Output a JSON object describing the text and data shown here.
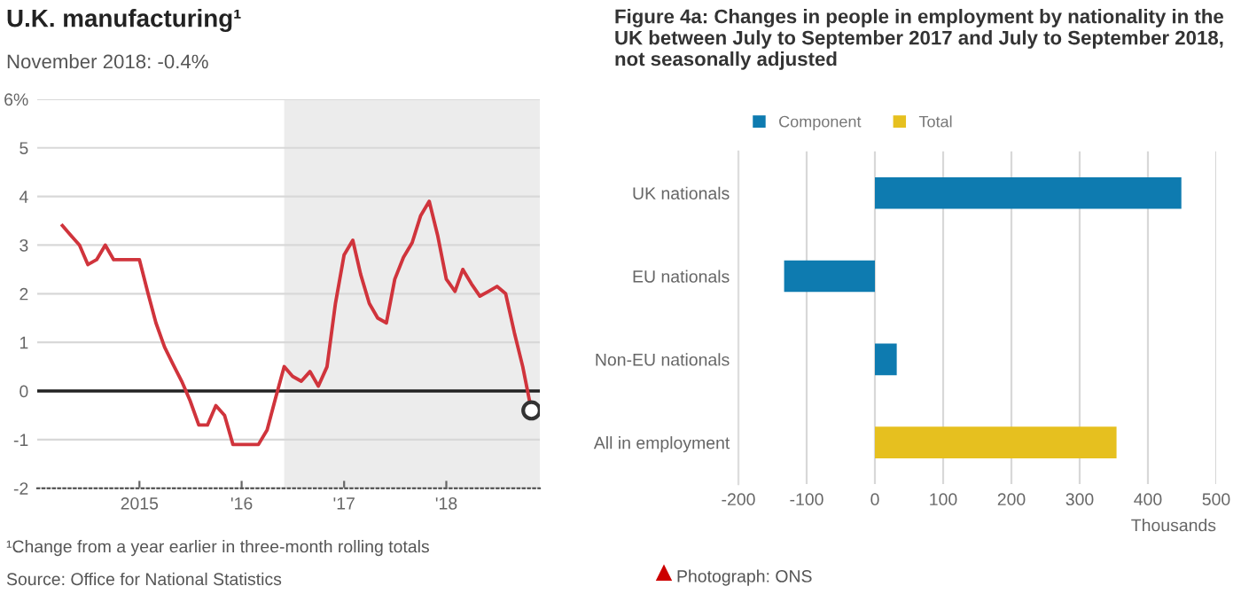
{
  "chart_data": [
    {
      "type": "line",
      "title": "U.K. manufacturing¹",
      "subtitle": "November 2018: -0.4%",
      "x": [
        "2014-04",
        "2014-05",
        "2014-06",
        "2014-07",
        "2014-08",
        "2014-09",
        "2014-10",
        "2014-11",
        "2014-12",
        "2015-01",
        "2015-02",
        "2015-03",
        "2015-04",
        "2015-05",
        "2015-06",
        "2015-07",
        "2015-08",
        "2015-09",
        "2015-10",
        "2015-11",
        "2015-12",
        "2016-01",
        "2016-02",
        "2016-03",
        "2016-04",
        "2016-05",
        "2016-06",
        "2016-07",
        "2016-08",
        "2016-09",
        "2016-10",
        "2016-11",
        "2016-12",
        "2017-01",
        "2017-02",
        "2017-03",
        "2017-04",
        "2017-05",
        "2017-06",
        "2017-07",
        "2017-08",
        "2017-09",
        "2017-10",
        "2017-11",
        "2017-12",
        "2018-01",
        "2018-02",
        "2018-03",
        "2018-04",
        "2018-05",
        "2018-06",
        "2018-07",
        "2018-08",
        "2018-09",
        "2018-10",
        "2018-11"
      ],
      "series": [
        {
          "color": "#d0343c",
          "values": [
            3.4,
            3.2,
            3.0,
            2.6,
            2.7,
            3.0,
            2.7,
            2.7,
            2.7,
            2.7,
            2.0,
            1.4,
            0.9,
            0.55,
            0.2,
            -0.2,
            -0.7,
            -0.7,
            -0.3,
            -0.5,
            -1.1,
            -1.1,
            -1.1,
            -1.1,
            -0.8,
            -0.15,
            0.5,
            0.3,
            0.2,
            0.4,
            0.1,
            0.5,
            1.8,
            2.8,
            3.1,
            2.4,
            1.8,
            1.5,
            1.4,
            2.3,
            2.75,
            3.05,
            3.6,
            3.9,
            3.2,
            2.3,
            2.05,
            2.5,
            2.2,
            1.95,
            2.05,
            2.15,
            2.0,
            1.2,
            0.5,
            -0.4
          ]
        },
        {
          "type": "scatter",
          "marker": "circle",
          "color": "#333333",
          "x": [
            "2018-11"
          ],
          "values": [
            -0.4
          ]
        }
      ],
      "xlim": [
        "2014-01",
        "2018-12"
      ],
      "xticks": [
        {
          "value": "2015-01",
          "label": "2015"
        },
        {
          "value": "2016-01",
          "label": "'16"
        },
        {
          "value": "2017-01",
          "label": "'17"
        },
        {
          "value": "2018-01",
          "label": "'18"
        }
      ],
      "ylim": [
        -2,
        6
      ],
      "yticks": [
        -2,
        -1,
        0,
        1,
        2,
        3,
        4,
        5,
        {
          "value": 6,
          "label": "6%"
        }
      ],
      "grid": "y",
      "ref_lines": [
        {
          "axis": "y",
          "value": 0,
          "color": "#222222"
        }
      ],
      "bands": [
        {
          "axis": "x",
          "from": "2016-06",
          "to": "2018-12",
          "color": "#ececec"
        }
      ],
      "annotations": [
        "¹Change from a year earlier in three-month rolling totals",
        "Source: Office for National Statistics"
      ]
    },
    {
      "type": "bar",
      "orientation": "horizontal",
      "title": "Figure 4a: Changes in people in employment by nationality in the UK between July to September 2017 and July to September 2018, not seasonally adjusted",
      "categories": [
        "UK nationals",
        "EU nationals",
        "Non-EU nationals",
        "All in employment"
      ],
      "series": [
        {
          "name": "Component",
          "color": "#0e7bb0",
          "values": [
            449,
            -133,
            32,
            null
          ]
        },
        {
          "name": "Total",
          "color": "#e6c01f",
          "values": [
            null,
            null,
            null,
            354
          ]
        }
      ],
      "xlim": [
        -200,
        500
      ],
      "xticks": [
        -200,
        -100,
        0,
        100,
        200,
        300,
        400,
        500
      ],
      "xlabel": "Thousands",
      "grid": "x",
      "legend": "top left",
      "annotations": [
        "Photograph: ONS"
      ]
    }
  ]
}
